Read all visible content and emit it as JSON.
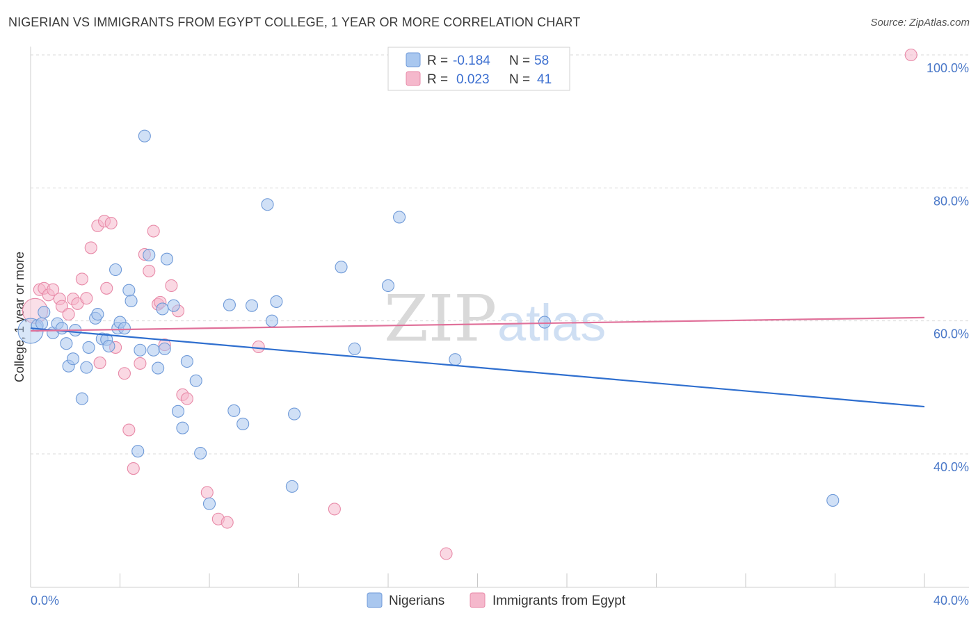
{
  "header": {
    "title": "NIGERIAN VS IMMIGRANTS FROM EGYPT COLLEGE, 1 YEAR OR MORE CORRELATION CHART",
    "source": "Source: ZipAtlas.com"
  },
  "watermark": {
    "zip": "ZIP",
    "atlas": "atlas"
  },
  "colors": {
    "blue_fill": "#a9c7ef",
    "blue_stroke": "#6f9ad8",
    "blue_line": "#2f6fcf",
    "pink_fill": "#f5b8cc",
    "pink_stroke": "#e88aa8",
    "pink_line": "#e0719a",
    "grid": "#d8d8d8",
    "tick_text": "#4a78c8"
  },
  "legend": {
    "r_label": "R =",
    "n_label": "N =",
    "series": [
      {
        "r": "-0.184",
        "n": "58"
      },
      {
        "r": "0.023",
        "n": "41"
      }
    ]
  },
  "chart_data": {
    "type": "scatter",
    "title": "NIGERIAN VS IMMIGRANTS FROM EGYPT COLLEGE, 1 YEAR OR MORE CORRELATION CHART",
    "xlabel": "",
    "ylabel": "College, 1 year or more",
    "xlim": [
      0,
      40
    ],
    "ylim": [
      22,
      103
    ],
    "x_tick_labels": [
      "0.0%",
      "40.0%"
    ],
    "y_ticks": [
      40,
      60,
      80,
      100
    ],
    "y_tick_labels": [
      "40.0%",
      "60.0%",
      "80.0%",
      "100.0%"
    ],
    "series": [
      {
        "name": "Nigerians",
        "trend": {
          "x": [
            0,
            40
          ],
          "y": [
            58.9,
            47.1
          ]
        },
        "points": [
          {
            "x": 0.0,
            "y": 58.5,
            "big": true
          },
          {
            "x": 0.3,
            "y": 59.3
          },
          {
            "x": 0.5,
            "y": 59.6
          },
          {
            "x": 0.6,
            "y": 61.3
          },
          {
            "x": 1.0,
            "y": 58.2
          },
          {
            "x": 1.2,
            "y": 59.6
          },
          {
            "x": 1.4,
            "y": 58.9
          },
          {
            "x": 1.6,
            "y": 56.6
          },
          {
            "x": 1.7,
            "y": 53.2
          },
          {
            "x": 1.9,
            "y": 54.3
          },
          {
            "x": 2.0,
            "y": 58.6
          },
          {
            "x": 2.3,
            "y": 48.3
          },
          {
            "x": 2.5,
            "y": 53.0
          },
          {
            "x": 2.6,
            "y": 56.0
          },
          {
            "x": 2.9,
            "y": 60.4
          },
          {
            "x": 3.0,
            "y": 61.0
          },
          {
            "x": 3.2,
            "y": 57.3
          },
          {
            "x": 3.4,
            "y": 57.2
          },
          {
            "x": 3.5,
            "y": 56.2
          },
          {
            "x": 3.8,
            "y": 67.7
          },
          {
            "x": 3.9,
            "y": 58.9
          },
          {
            "x": 4.0,
            "y": 59.8
          },
          {
            "x": 4.2,
            "y": 58.9
          },
          {
            "x": 4.4,
            "y": 64.6
          },
          {
            "x": 4.5,
            "y": 63.0
          },
          {
            "x": 4.8,
            "y": 40.4
          },
          {
            "x": 4.9,
            "y": 55.6
          },
          {
            "x": 5.1,
            "y": 87.8
          },
          {
            "x": 5.3,
            "y": 69.9
          },
          {
            "x": 5.5,
            "y": 55.6
          },
          {
            "x": 5.7,
            "y": 52.9
          },
          {
            "x": 5.9,
            "y": 61.8
          },
          {
            "x": 6.0,
            "y": 55.8
          },
          {
            "x": 6.1,
            "y": 69.3
          },
          {
            "x": 6.4,
            "y": 62.3
          },
          {
            "x": 6.6,
            "y": 46.4
          },
          {
            "x": 6.8,
            "y": 43.9
          },
          {
            "x": 7.0,
            "y": 53.9
          },
          {
            "x": 7.4,
            "y": 51.0
          },
          {
            "x": 7.6,
            "y": 40.1
          },
          {
            "x": 8.0,
            "y": 32.5
          },
          {
            "x": 8.9,
            "y": 62.4
          },
          {
            "x": 9.1,
            "y": 46.5
          },
          {
            "x": 9.5,
            "y": 44.5
          },
          {
            "x": 9.9,
            "y": 62.3
          },
          {
            "x": 10.6,
            "y": 77.5
          },
          {
            "x": 10.8,
            "y": 60.0
          },
          {
            "x": 11.0,
            "y": 62.9
          },
          {
            "x": 11.7,
            "y": 35.1
          },
          {
            "x": 11.8,
            "y": 46.0
          },
          {
            "x": 13.9,
            "y": 68.1
          },
          {
            "x": 14.5,
            "y": 55.8
          },
          {
            "x": 16.0,
            "y": 65.3
          },
          {
            "x": 16.5,
            "y": 75.6
          },
          {
            "x": 19.0,
            "y": 54.2
          },
          {
            "x": 23.0,
            "y": 59.8
          },
          {
            "x": 35.9,
            "y": 33.0
          }
        ]
      },
      {
        "name": "Immigrants from Egypt",
        "trend": {
          "x": [
            0,
            40
          ],
          "y": [
            58.5,
            60.5
          ]
        },
        "points": [
          {
            "x": 0.2,
            "y": 61.5,
            "big": true
          },
          {
            "x": 0.4,
            "y": 64.7
          },
          {
            "x": 0.6,
            "y": 64.9
          },
          {
            "x": 0.8,
            "y": 63.9
          },
          {
            "x": 1.0,
            "y": 64.7
          },
          {
            "x": 1.3,
            "y": 63.3
          },
          {
            "x": 1.4,
            "y": 62.2
          },
          {
            "x": 1.7,
            "y": 61.0
          },
          {
            "x": 1.9,
            "y": 63.3
          },
          {
            "x": 2.1,
            "y": 62.6
          },
          {
            "x": 2.3,
            "y": 66.3
          },
          {
            "x": 2.5,
            "y": 63.4
          },
          {
            "x": 2.7,
            "y": 71.0
          },
          {
            "x": 3.0,
            "y": 74.3
          },
          {
            "x": 3.1,
            "y": 53.7
          },
          {
            "x": 3.3,
            "y": 75.0
          },
          {
            "x": 3.4,
            "y": 64.9
          },
          {
            "x": 3.6,
            "y": 74.7
          },
          {
            "x": 3.8,
            "y": 56.0
          },
          {
            "x": 4.2,
            "y": 52.1
          },
          {
            "x": 4.4,
            "y": 43.6
          },
          {
            "x": 4.6,
            "y": 37.8
          },
          {
            "x": 4.9,
            "y": 53.6
          },
          {
            "x": 5.1,
            "y": 70.0
          },
          {
            "x": 5.3,
            "y": 67.5
          },
          {
            "x": 5.5,
            "y": 73.5
          },
          {
            "x": 5.7,
            "y": 62.5
          },
          {
            "x": 5.8,
            "y": 62.8
          },
          {
            "x": 6.0,
            "y": 56.4
          },
          {
            "x": 6.3,
            "y": 65.3
          },
          {
            "x": 6.6,
            "y": 61.5
          },
          {
            "x": 6.8,
            "y": 48.9
          },
          {
            "x": 7.0,
            "y": 48.3
          },
          {
            "x": 7.9,
            "y": 34.2
          },
          {
            "x": 8.4,
            "y": 30.2
          },
          {
            "x": 8.8,
            "y": 29.7
          },
          {
            "x": 10.2,
            "y": 56.1
          },
          {
            "x": 13.6,
            "y": 31.7
          },
          {
            "x": 18.6,
            "y": 25.0
          },
          {
            "x": 39.4,
            "y": 100.0
          }
        ]
      }
    ],
    "legend_position": "top-center"
  }
}
